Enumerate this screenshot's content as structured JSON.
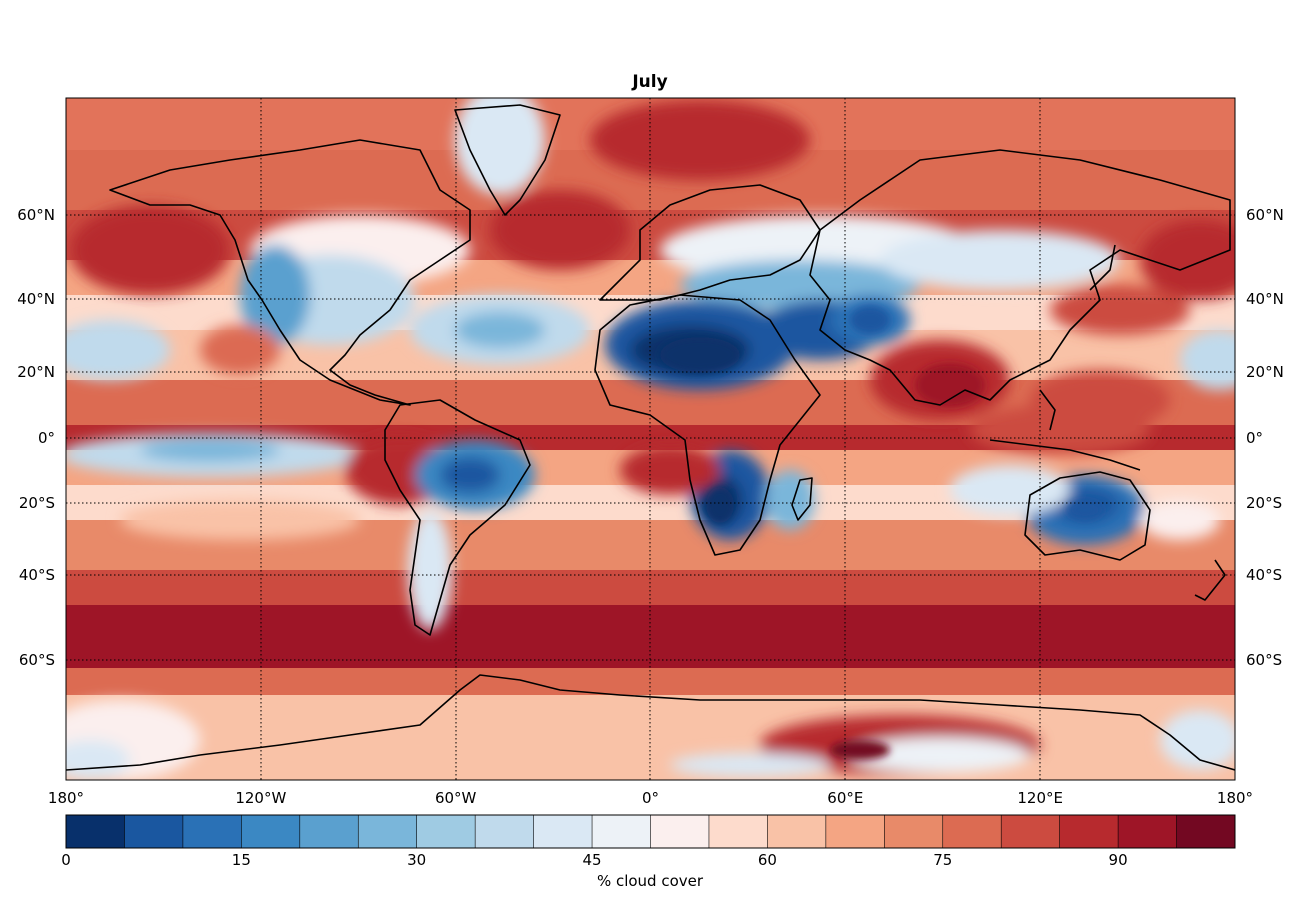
{
  "map": {
    "title": "July",
    "lat_labels": [
      {
        "lat": 60,
        "text": "60°N"
      },
      {
        "lat": 40,
        "text": "40°N"
      },
      {
        "lat": 20,
        "text": "20°N"
      },
      {
        "lat": 0,
        "text": "0°"
      },
      {
        "lat": -20,
        "text": "20°S"
      },
      {
        "lat": -40,
        "text": "40°S"
      },
      {
        "lat": -60,
        "text": "60°S"
      }
    ],
    "lon_labels": [
      {
        "lon": -180,
        "text": "180°"
      },
      {
        "lon": -120,
        "text": "120°W"
      },
      {
        "lon": -60,
        "text": "60°W"
      },
      {
        "lon": 0,
        "text": "0°"
      },
      {
        "lon": 60,
        "text": "60°E"
      },
      {
        "lon": 120,
        "text": "120°E"
      },
      {
        "lon": 180,
        "text": "180°"
      }
    ]
  },
  "colorbar": {
    "label": "% cloud cover",
    "min": 0,
    "max": 100,
    "step": 5,
    "ticks": [
      {
        "value": 0,
        "text": "0"
      },
      {
        "value": 15,
        "text": "15"
      },
      {
        "value": 30,
        "text": "30"
      },
      {
        "value": 45,
        "text": "45"
      },
      {
        "value": 60,
        "text": "60"
      },
      {
        "value": 75,
        "text": "75"
      },
      {
        "value": 90,
        "text": "90"
      }
    ],
    "colors": [
      "#08306b",
      "#1a57a0",
      "#2a71b6",
      "#3b88c3",
      "#5aa0cf",
      "#7ab6da",
      "#9fcbe3",
      "#c0daec",
      "#dae8f4",
      "#edf2f7",
      "#fbefee",
      "#fddbcc",
      "#f9c2a7",
      "#f4a583",
      "#e88a69",
      "#dc6b52",
      "#cc4b40",
      "#b72a2e",
      "#9e1527",
      "#730822"
    ]
  }
}
